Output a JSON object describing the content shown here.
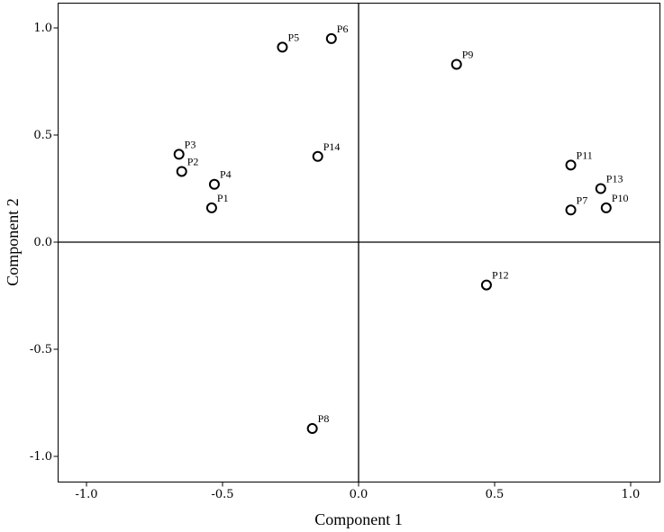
{
  "chart_data": {
    "type": "scatter",
    "xlabel": "Component 1",
    "ylabel": "Component 2",
    "xlim": [
      -1.1,
      1.1
    ],
    "ylim": [
      -1.15,
      1.1
    ],
    "xticks": [
      {
        "value": -1.0,
        "label": "-1.0"
      },
      {
        "value": -0.5,
        "label": "-0.5"
      },
      {
        "value": 0.0,
        "label": "0.0"
      },
      {
        "value": 0.5,
        "label": "0.5"
      },
      {
        "value": 1.0,
        "label": "1.0"
      }
    ],
    "yticks": [
      {
        "value": 1.0,
        "label": "1.0"
      },
      {
        "value": 0.5,
        "label": "0.5"
      },
      {
        "value": 0.0,
        "label": "0.0"
      },
      {
        "value": -0.5,
        "label": "-0.5"
      },
      {
        "value": -1.0,
        "label": "-1.0"
      }
    ],
    "reference_lines": {
      "x": 0,
      "y": 0
    },
    "grid": false,
    "legend": false,
    "points": [
      {
        "label": "P1",
        "x": -0.54,
        "y": 0.16
      },
      {
        "label": "P2",
        "x": -0.65,
        "y": 0.33
      },
      {
        "label": "P3",
        "x": -0.66,
        "y": 0.41
      },
      {
        "label": "P4",
        "x": -0.53,
        "y": 0.27
      },
      {
        "label": "P5",
        "x": -0.28,
        "y": 0.91
      },
      {
        "label": "P6",
        "x": -0.1,
        "y": 0.95
      },
      {
        "label": "P7",
        "x": 0.78,
        "y": 0.15
      },
      {
        "label": "P8",
        "x": -0.17,
        "y": -0.87
      },
      {
        "label": "P9",
        "x": 0.36,
        "y": 0.83
      },
      {
        "label": "P10",
        "x": 0.91,
        "y": 0.16
      },
      {
        "label": "P11",
        "x": 0.78,
        "y": 0.36
      },
      {
        "label": "P12",
        "x": 0.47,
        "y": -0.2
      },
      {
        "label": "P13",
        "x": 0.89,
        "y": 0.25
      },
      {
        "label": "P14",
        "x": -0.15,
        "y": 0.4
      }
    ]
  }
}
